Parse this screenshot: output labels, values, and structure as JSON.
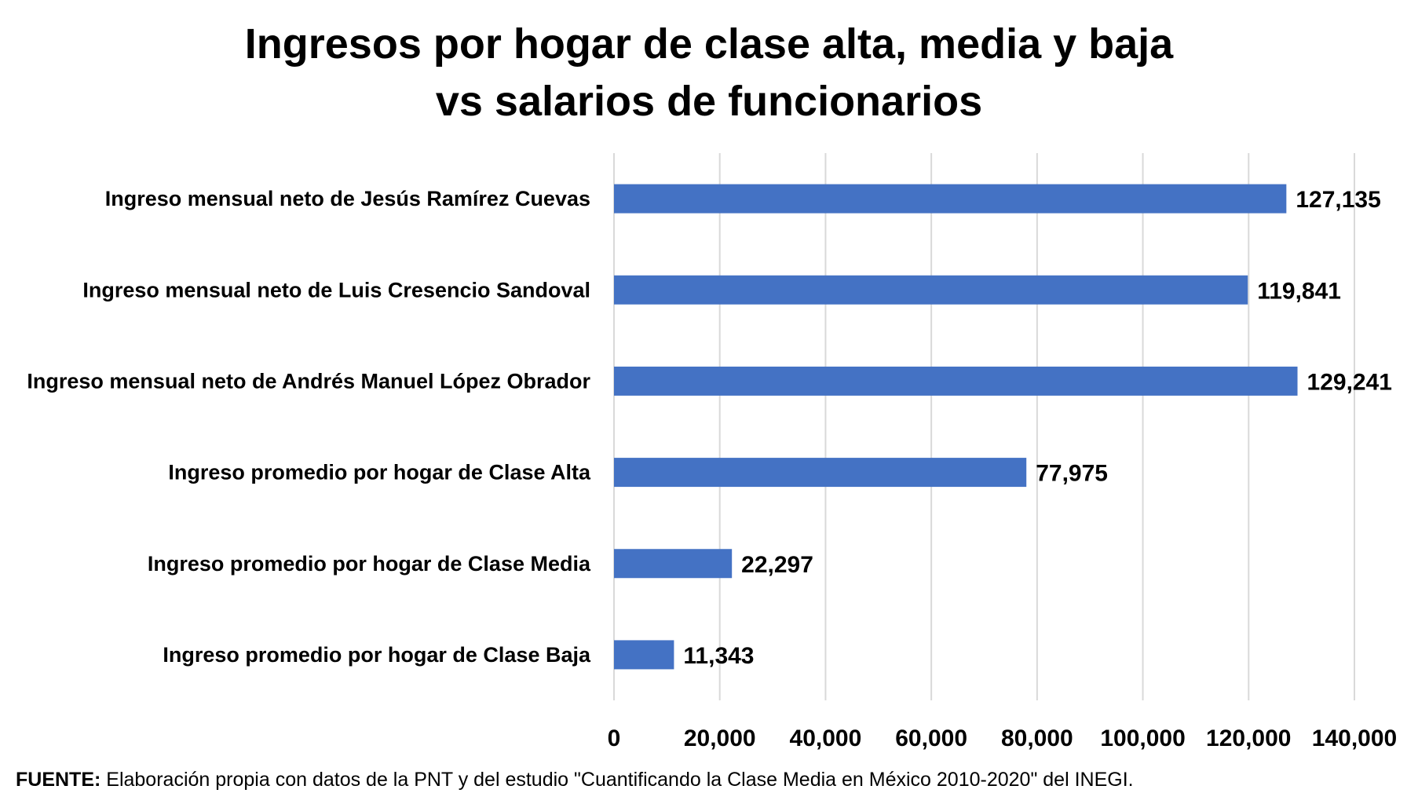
{
  "chart_data": {
    "type": "bar",
    "orientation": "horizontal",
    "title": [
      "Ingresos por hogar de clase alta, media y baja",
      "vs salarios de funcionarios"
    ],
    "categories": [
      "Ingreso mensual neto de Jesús Ramírez Cuevas",
      "Ingreso mensual neto de Luis Cresencio Sandoval",
      "Ingreso mensual neto de Andrés Manuel López Obrador",
      "Ingreso promedio por hogar de Clase Alta",
      "Ingreso promedio por hogar de Clase Media",
      "Ingreso promedio por hogar de Clase Baja"
    ],
    "values": [
      127135,
      119841,
      129241,
      77975,
      22297,
      11343
    ],
    "value_labels": [
      "127,135",
      "119,841",
      "129,241",
      "77,975",
      "22,297",
      "11,343"
    ],
    "xlim": [
      0,
      140000
    ],
    "xticks": [
      0,
      20000,
      40000,
      60000,
      80000,
      100000,
      120000,
      140000
    ],
    "xtick_labels": [
      "0",
      "20,000",
      "40,000",
      "60,000",
      "80,000",
      "100,000",
      "120,000",
      "140,000"
    ],
    "grid": true,
    "bar_color": "#4472C4",
    "grid_color": "#D9D9D9"
  },
  "source": {
    "label": "FUENTE:",
    "text": " Elaboración propia con datos de la PNT y del estudio \"Cuantificando la Clase Media en México 2010-2020\" del INEGI."
  }
}
